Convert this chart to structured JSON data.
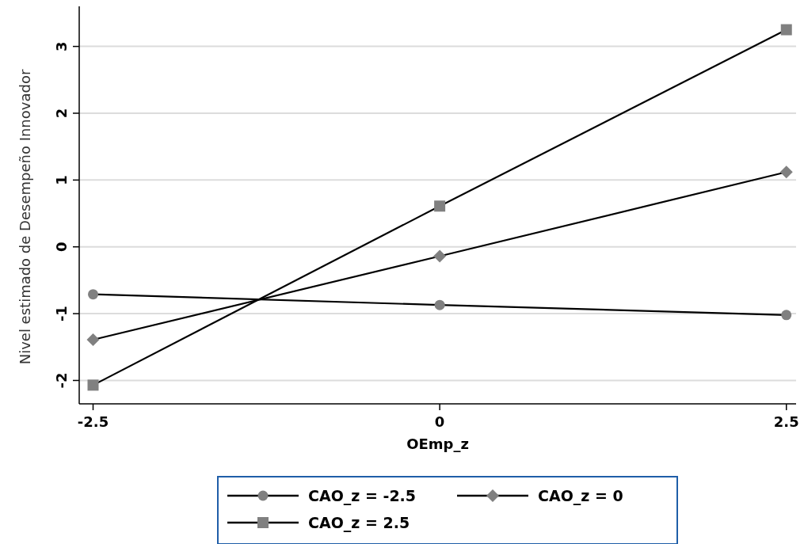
{
  "chart_data": {
    "type": "line",
    "xlabel": "OEmp_z",
    "ylabel": "Nivel estimado de Desempeño Innovador",
    "x": [
      -2.5,
      0,
      2.5
    ],
    "xlim": [
      -2.6,
      2.57
    ],
    "xticks": [
      -2.5,
      0,
      2.5
    ],
    "ylim": [
      -2.35,
      3.6
    ],
    "yticks": [
      -2,
      -1,
      0,
      1,
      2,
      3
    ],
    "grid": "y",
    "legend": "bottom",
    "series": [
      {
        "name": "CAO_z = -2.5",
        "color": "#000000",
        "marker": "circle",
        "values": [
          -0.71,
          -0.87,
          -1.02
        ]
      },
      {
        "name": "CAO_z = 0",
        "color": "#000000",
        "marker": "diamond",
        "values": [
          -1.39,
          -0.14,
          1.12
        ]
      },
      {
        "name": "CAO_z = 2.5",
        "color": "#000000",
        "marker": "square",
        "values": [
          -2.07,
          0.61,
          3.25
        ]
      }
    ]
  }
}
